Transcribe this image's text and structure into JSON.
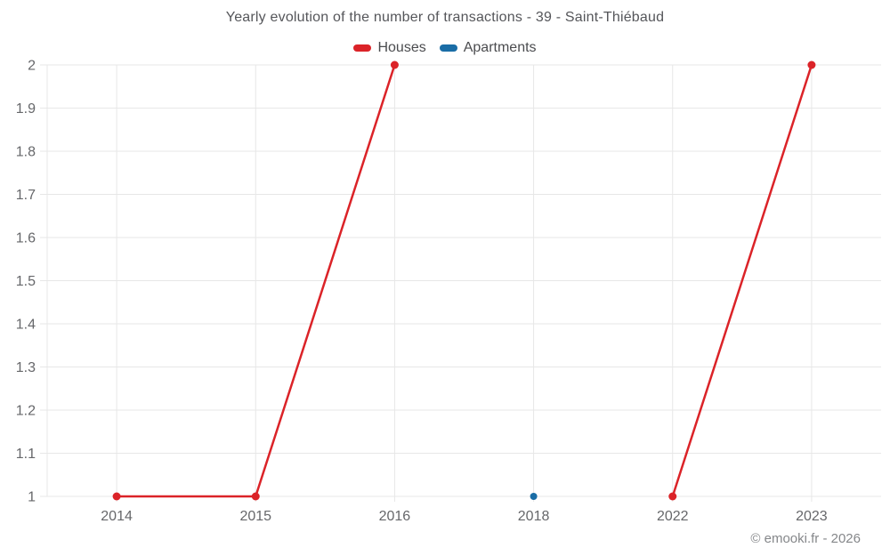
{
  "title": "Yearly evolution of the number of transactions - 39 - Saint-Thiébaud",
  "legend": [
    {
      "label": "Houses",
      "color": "#db2328"
    },
    {
      "label": "Apartments",
      "color": "#1a6da6"
    }
  ],
  "footer": "© emooki.fr - 2026",
  "colors": {
    "background": "#ffffff",
    "grid": "#e7e7e7",
    "title_text": "#55565a",
    "legend_text": "#4b4c4f",
    "axis_text": "#66676a",
    "footer_text": "#85878a",
    "houses": "#db2328",
    "apartments": "#1a6da6"
  },
  "chart_data": {
    "type": "line",
    "title": "Yearly evolution of the number of transactions - 39 - Saint-Thiébaud",
    "categories": [
      "2014",
      "2015",
      "2016",
      "2018",
      "2022",
      "2023"
    ],
    "series": [
      {
        "name": "Houses",
        "color": "#db2328",
        "values": [
          1,
          1,
          2,
          null,
          1,
          2
        ]
      },
      {
        "name": "Apartments",
        "color": "#1a6da6",
        "values": [
          null,
          null,
          null,
          1,
          null,
          null
        ]
      }
    ],
    "xlabel": "",
    "ylabel": "",
    "ylim": [
      1,
      2
    ],
    "ytick_step": 0.1,
    "grid": true,
    "legend_position": "top",
    "annotations": []
  }
}
